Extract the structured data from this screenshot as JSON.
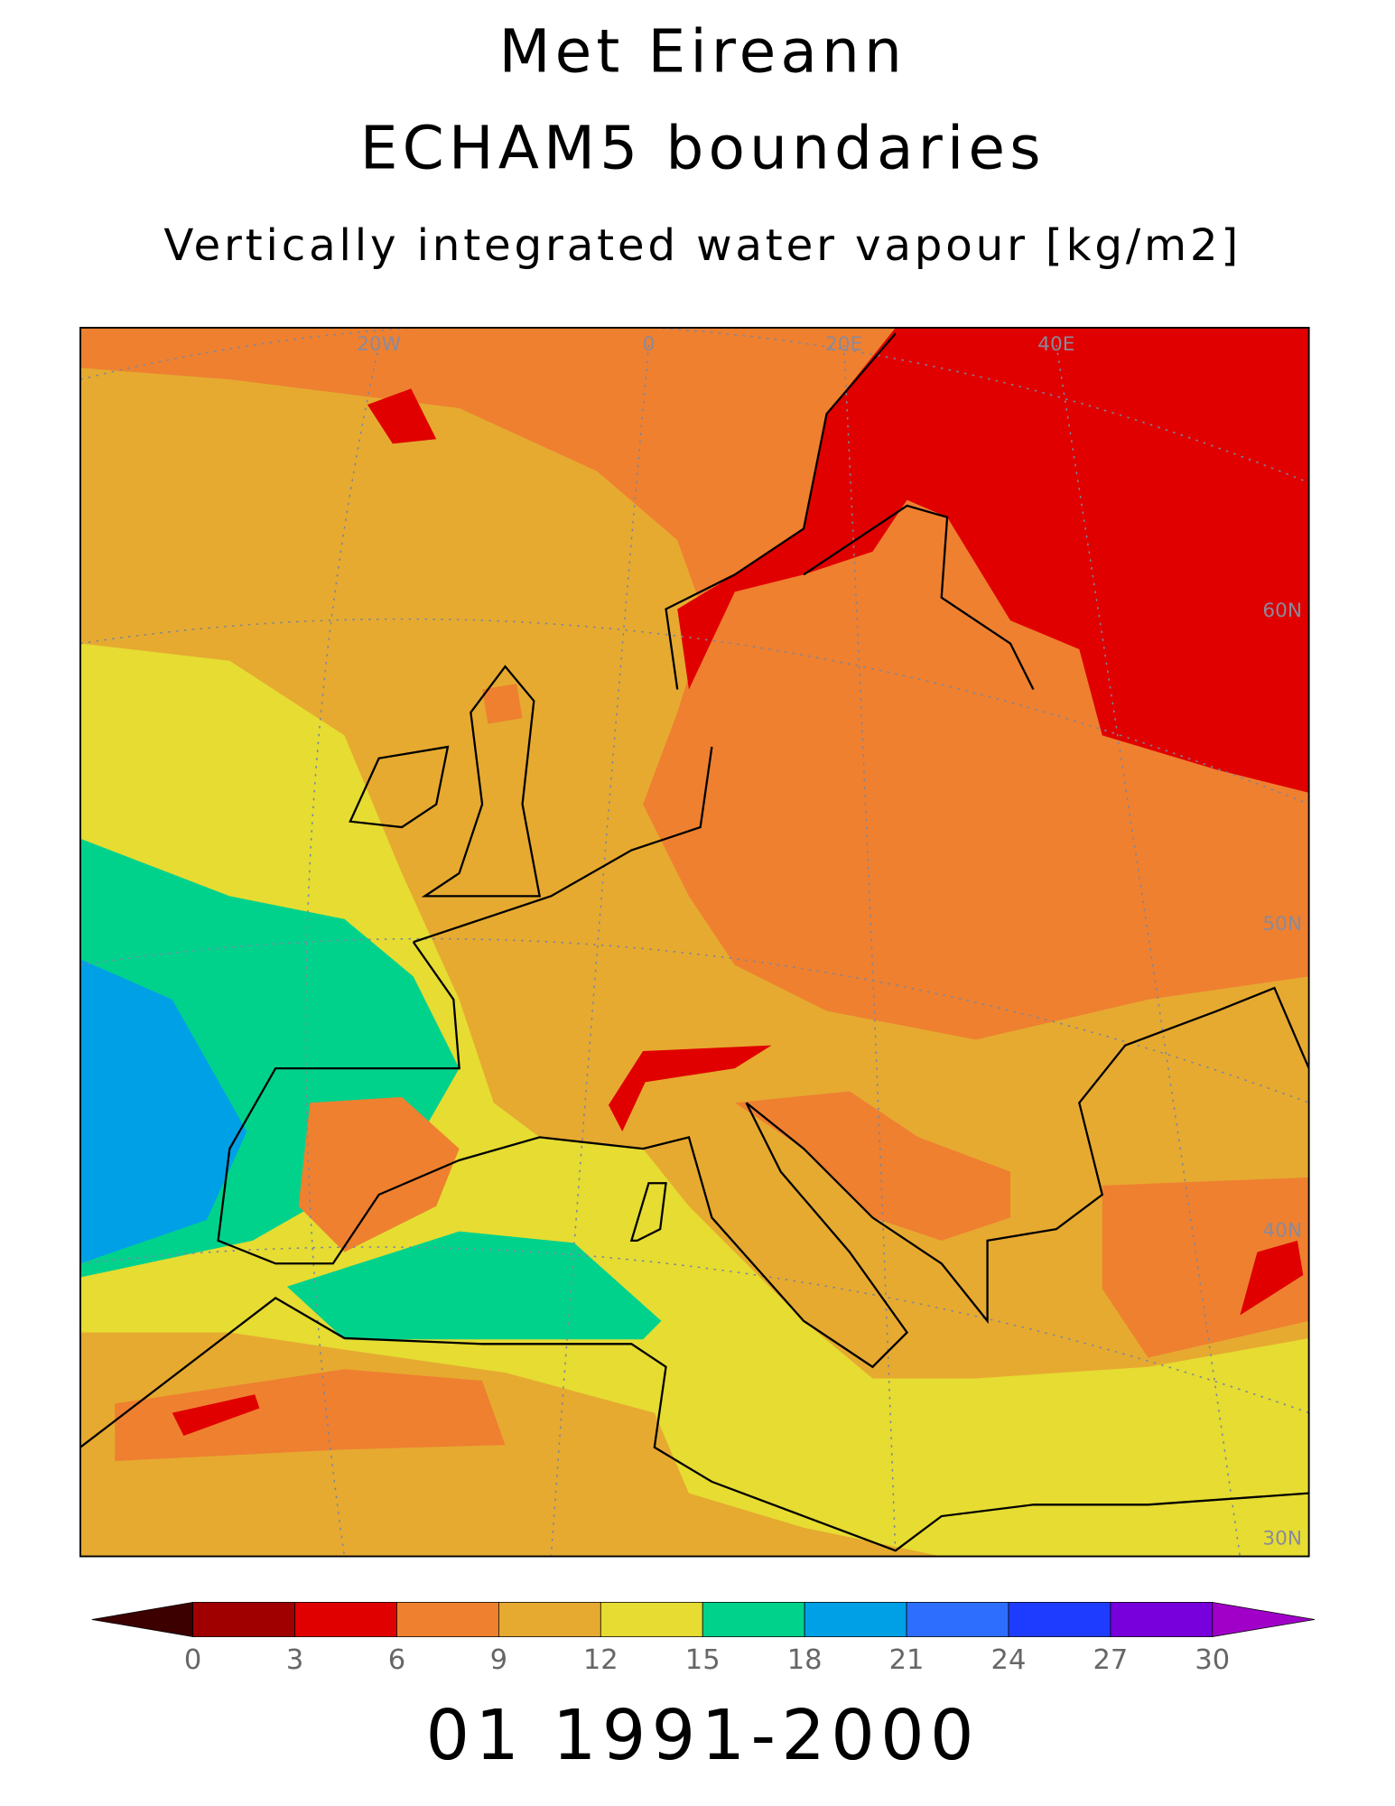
{
  "header": {
    "title": "Met Eireann",
    "subtitle": "ECHAM5 boundaries",
    "variable": "Vertically integrated water vapour [kg/m2]"
  },
  "map": {
    "lon_labels": [
      "20W",
      "0",
      "20E",
      "40E"
    ],
    "lat_labels": [
      "60N",
      "50N",
      "40N",
      "30N"
    ]
  },
  "colorbar": {
    "ticks": [
      0,
      3,
      6,
      9,
      12,
      15,
      18,
      21,
      24,
      27,
      30
    ],
    "colors": [
      "#3c0000",
      "#a00000",
      "#e00000",
      "#ee8030",
      "#e6aa30",
      "#e6dc32",
      "#00d28c",
      "#00a0e6",
      "#2d6eff",
      "#1e3cff",
      "#7800dc",
      "#a000c8"
    ]
  },
  "footer": {
    "period": "01 1991-2000"
  }
}
